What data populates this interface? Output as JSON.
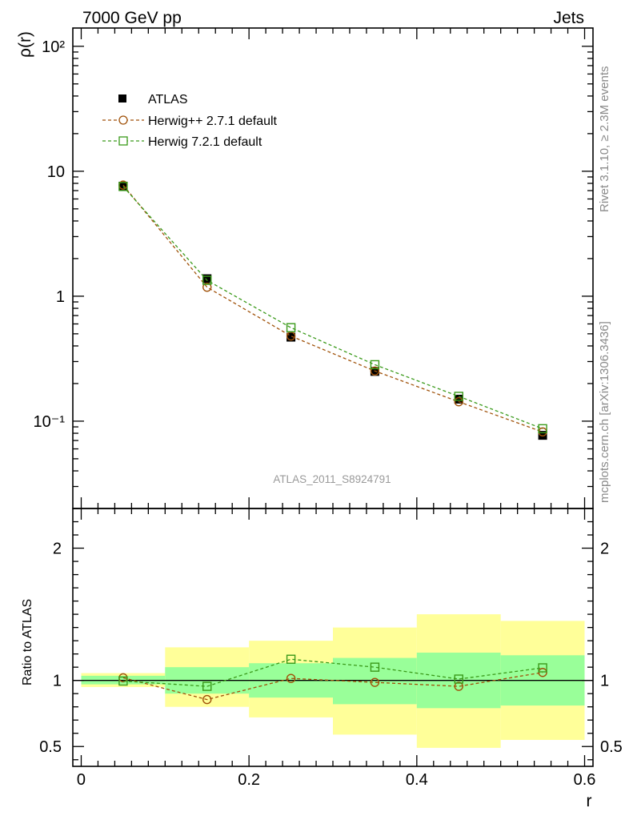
{
  "header": {
    "title_left": "7000 GeV pp",
    "title_right": "Jets"
  },
  "side_labels": {
    "rivet": "Rivet 3.1.10, ≥ 2.3M events",
    "mcplots": "mcplots.cern.ch [arXiv:1306.3436]"
  },
  "analysis_label": "ATLAS_2011_S8924791",
  "colors": {
    "data": "#000000",
    "herwigpp": "#a0520a",
    "herwig7": "#3a9a1a",
    "band_inner": "#99ff99",
    "band_outer": "#ffff99"
  },
  "chart_data": [
    {
      "type": "scatter",
      "yscale": "log",
      "ylabel": "ρ(r)",
      "xlabel": "",
      "xlim": [
        -0.01,
        0.61
      ],
      "ylim": [
        0.02,
        140
      ],
      "y_tick_labels": [
        "10⁻¹",
        "1",
        "10",
        "10²"
      ],
      "x": [
        0.05,
        0.15,
        0.25,
        0.35,
        0.45,
        0.55
      ],
      "series": [
        {
          "name": "ATLAS",
          "style": "data",
          "values": [
            7.6,
            1.38,
            0.47,
            0.25,
            0.15,
            0.077
          ]
        },
        {
          "name": "Herwig++ 2.7.1 default",
          "style": "herwigpp",
          "values": [
            7.75,
            1.18,
            0.48,
            0.252,
            0.143,
            0.082
          ]
        },
        {
          "name": "Herwig 7.2.1 default",
          "style": "herwig7",
          "values": [
            7.55,
            1.34,
            0.56,
            0.283,
            0.158,
            0.087
          ]
        }
      ]
    },
    {
      "type": "scatter",
      "ylabel": "Ratio to ATLAS",
      "xlabel": "r",
      "xlim": [
        -0.01,
        0.61
      ],
      "ylim": [
        0.35,
        2.3
      ],
      "y_tick_labels": [
        "0.5",
        "1",
        "2"
      ],
      "x_tick_labels": [
        "0",
        "0.2",
        "0.4",
        "0.6"
      ],
      "bins": [
        [
          0,
          0.1
        ],
        [
          0.1,
          0.2
        ],
        [
          0.2,
          0.3
        ],
        [
          0.3,
          0.4
        ],
        [
          0.4,
          0.5
        ],
        [
          0.5,
          0.6
        ]
      ],
      "band_inner": [
        [
          0.97,
          1.035
        ],
        [
          0.9,
          1.1
        ],
        [
          0.87,
          1.13
        ],
        [
          0.82,
          1.17
        ],
        [
          0.79,
          1.21
        ],
        [
          0.81,
          1.19
        ]
      ],
      "band_outer": [
        [
          0.95,
          1.055
        ],
        [
          0.8,
          1.25
        ],
        [
          0.72,
          1.3
        ],
        [
          0.59,
          1.4
        ],
        [
          0.49,
          1.5
        ],
        [
          0.55,
          1.45
        ]
      ],
      "series": [
        {
          "name": "Herwig++ 2.7.1 default",
          "style": "herwigpp",
          "values": [
            1.02,
            0.855,
            1.015,
            0.985,
            0.955,
            1.06
          ]
        },
        {
          "name": "Herwig 7.2.1 default",
          "style": "herwig7",
          "values": [
            0.995,
            0.955,
            1.16,
            1.1,
            1.01,
            1.095
          ]
        }
      ]
    }
  ]
}
